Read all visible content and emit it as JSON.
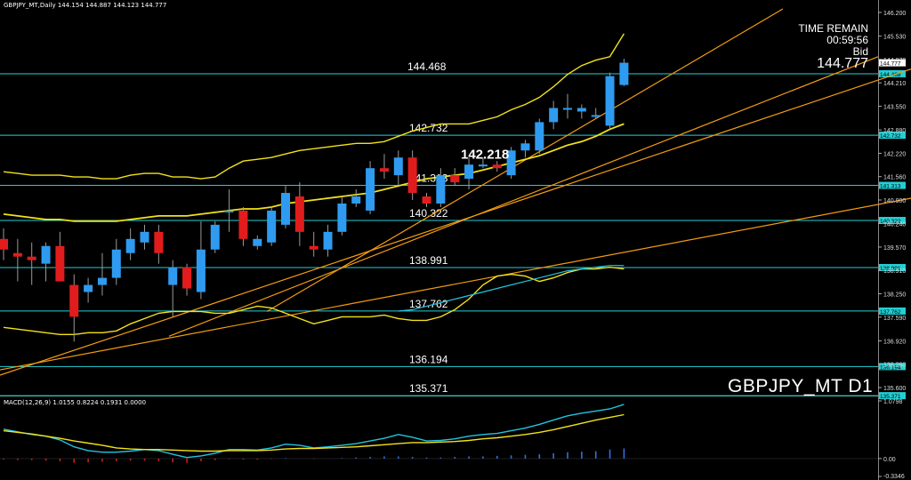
{
  "header": {
    "symbol_period": "GBPJPY_MT,Daily",
    "ohlc": "144.154 144.887 144.123 144.777"
  },
  "status": {
    "time_remain_label": "TIME REMAIN",
    "time_remain": "00:59:56",
    "bid_label": "Bid",
    "bid": "144.777"
  },
  "watermark": "GBPJPY_MT D1",
  "macd_label": "MACD(12,26,9) 1.0155 0.8224 0.1931 0.0000",
  "colors": {
    "background": "#000000",
    "bull": "#2f9bf0",
    "bear": "#e11c1c",
    "level": "#23cfd4",
    "trend": "#f39c12",
    "band": "#f2e21a",
    "ma_cyan": "#22c4e0",
    "price_tag_bg": "#23cfd4"
  },
  "chart_data": {
    "type": "candlestick",
    "timeframe": "Daily",
    "ylim": [
      135.3,
      146.3
    ],
    "axis_ticks": [
      "146.200",
      "145.530",
      "144.870",
      "144.210",
      "143.550",
      "142.880",
      "142.220",
      "141.560",
      "140.900",
      "140.240",
      "139.570",
      "138.910",
      "138.250",
      "137.590",
      "136.920",
      "136.260",
      "135.600"
    ],
    "levels": [
      {
        "value": 144.468,
        "label": "144.468",
        "tag": "144.468"
      },
      {
        "value": 142.732,
        "label": "142.732",
        "tag": "142.732"
      },
      {
        "value": 141.313,
        "label": "141.313",
        "tag": "141.313"
      },
      {
        "value": 140.322,
        "label": "140.322",
        "tag": "140.322"
      },
      {
        "value": 138.991,
        "label": "138.991",
        "tag": "138.991"
      },
      {
        "value": 137.762,
        "label": "137.762",
        "tag": "137.762"
      },
      {
        "value": 136.194,
        "label": "136.194",
        "tag": "136.194"
      },
      {
        "value": 135.371,
        "label": "135.371",
        "tag": "135.371"
      }
    ],
    "current_price": {
      "value": 144.777,
      "label": "144.777"
    },
    "annotation": {
      "text": "142.218",
      "value": 142.218
    },
    "candles": [
      {
        "o": 139.8,
        "h": 140.1,
        "l": 139.2,
        "c": 139.5
      },
      {
        "o": 139.4,
        "h": 139.8,
        "l": 138.6,
        "c": 139.3
      },
      {
        "o": 139.3,
        "h": 139.7,
        "l": 138.5,
        "c": 139.2
      },
      {
        "o": 139.1,
        "h": 139.7,
        "l": 138.6,
        "c": 139.6
      },
      {
        "o": 139.6,
        "h": 140.0,
        "l": 138.7,
        "c": 138.6
      },
      {
        "o": 138.5,
        "h": 138.8,
        "l": 136.9,
        "c": 137.6
      },
      {
        "o": 138.3,
        "h": 138.7,
        "l": 138.0,
        "c": 138.5
      },
      {
        "o": 138.5,
        "h": 139.4,
        "l": 138.2,
        "c": 138.7
      },
      {
        "o": 138.7,
        "h": 139.8,
        "l": 138.5,
        "c": 139.5
      },
      {
        "o": 139.4,
        "h": 140.1,
        "l": 139.2,
        "c": 139.8
      },
      {
        "o": 139.7,
        "h": 140.2,
        "l": 139.5,
        "c": 140.0
      },
      {
        "o": 140.0,
        "h": 140.2,
        "l": 139.1,
        "c": 139.4
      },
      {
        "o": 138.5,
        "h": 139.2,
        "l": 137.6,
        "c": 139.0
      },
      {
        "o": 139.0,
        "h": 139.1,
        "l": 138.2,
        "c": 138.4
      },
      {
        "o": 138.3,
        "h": 140.3,
        "l": 138.1,
        "c": 139.5
      },
      {
        "o": 139.5,
        "h": 140.3,
        "l": 139.4,
        "c": 140.2
      },
      {
        "o": 140.6,
        "h": 141.2,
        "l": 140.0,
        "c": 140.6
      },
      {
        "o": 140.6,
        "h": 140.7,
        "l": 139.6,
        "c": 139.8
      },
      {
        "o": 139.6,
        "h": 139.9,
        "l": 139.5,
        "c": 139.8
      },
      {
        "o": 139.7,
        "h": 140.7,
        "l": 139.6,
        "c": 140.6
      },
      {
        "o": 140.2,
        "h": 141.3,
        "l": 140.1,
        "c": 141.1
      },
      {
        "o": 141.0,
        "h": 141.4,
        "l": 139.6,
        "c": 140.0
      },
      {
        "o": 139.6,
        "h": 140.0,
        "l": 139.3,
        "c": 139.5
      },
      {
        "o": 139.5,
        "h": 140.2,
        "l": 139.3,
        "c": 140.0
      },
      {
        "o": 140.0,
        "h": 141.0,
        "l": 139.9,
        "c": 140.8
      },
      {
        "o": 140.8,
        "h": 141.2,
        "l": 140.7,
        "c": 141.0
      },
      {
        "o": 140.6,
        "h": 142.0,
        "l": 140.5,
        "c": 141.8
      },
      {
        "o": 141.8,
        "h": 142.2,
        "l": 141.5,
        "c": 141.7
      },
      {
        "o": 141.6,
        "h": 142.3,
        "l": 141.3,
        "c": 142.1
      },
      {
        "o": 142.1,
        "h": 142.3,
        "l": 140.9,
        "c": 141.1
      },
      {
        "o": 141.0,
        "h": 141.1,
        "l": 140.7,
        "c": 140.8
      },
      {
        "o": 140.8,
        "h": 141.8,
        "l": 140.7,
        "c": 141.6
      },
      {
        "o": 141.6,
        "h": 141.8,
        "l": 141.3,
        "c": 141.4
      },
      {
        "o": 141.5,
        "h": 142.1,
        "l": 141.2,
        "c": 141.9
      },
      {
        "o": 141.9,
        "h": 142.1,
        "l": 141.8,
        "c": 141.9
      },
      {
        "o": 141.9,
        "h": 142.0,
        "l": 141.7,
        "c": 141.8
      },
      {
        "o": 141.6,
        "h": 142.4,
        "l": 141.5,
        "c": 142.3
      },
      {
        "o": 142.3,
        "h": 142.6,
        "l": 142.1,
        "c": 142.5
      },
      {
        "o": 142.3,
        "h": 143.2,
        "l": 142.2,
        "c": 143.1
      },
      {
        "o": 143.1,
        "h": 143.7,
        "l": 142.9,
        "c": 143.5
      },
      {
        "o": 143.5,
        "h": 143.9,
        "l": 143.2,
        "c": 143.5
      },
      {
        "o": 143.4,
        "h": 143.6,
        "l": 143.2,
        "c": 143.5
      },
      {
        "o": 143.3,
        "h": 143.5,
        "l": 143.2,
        "c": 143.3
      },
      {
        "o": 143.0,
        "h": 144.5,
        "l": 142.9,
        "c": 144.4
      },
      {
        "o": 144.15,
        "h": 144.89,
        "l": 144.12,
        "c": 144.78
      }
    ],
    "overlays": {
      "upper_band": [
        141.7,
        141.65,
        141.6,
        141.6,
        141.6,
        141.55,
        141.55,
        141.5,
        141.5,
        141.6,
        141.65,
        141.65,
        141.55,
        141.55,
        141.5,
        141.55,
        141.8,
        142.0,
        142.05,
        142.1,
        142.2,
        142.3,
        142.35,
        142.4,
        142.45,
        142.5,
        142.5,
        142.55,
        142.7,
        142.85,
        142.95,
        143.05,
        143.05,
        143.05,
        143.15,
        143.25,
        143.45,
        143.6,
        143.8,
        144.1,
        144.45,
        144.7,
        144.85,
        144.95,
        145.6
      ],
      "mid_line": [
        140.5,
        140.45,
        140.4,
        140.35,
        140.35,
        140.3,
        140.3,
        140.3,
        140.3,
        140.35,
        140.4,
        140.45,
        140.45,
        140.45,
        140.5,
        140.55,
        140.6,
        140.65,
        140.65,
        140.7,
        140.8,
        140.85,
        140.9,
        140.95,
        141.0,
        141.05,
        141.1,
        141.2,
        141.3,
        141.4,
        141.5,
        141.55,
        141.6,
        141.65,
        141.75,
        141.85,
        141.95,
        142.05,
        142.15,
        142.3,
        142.45,
        142.55,
        142.7,
        142.9,
        143.05
      ],
      "lower_band": [
        137.3,
        137.25,
        137.2,
        137.15,
        137.1,
        137.1,
        137.15,
        137.15,
        137.2,
        137.4,
        137.55,
        137.7,
        137.75,
        137.75,
        137.75,
        137.7,
        137.7,
        137.8,
        137.9,
        137.85,
        137.7,
        137.55,
        137.4,
        137.5,
        137.6,
        137.6,
        137.6,
        137.65,
        137.55,
        137.5,
        137.5,
        137.6,
        137.8,
        138.1,
        138.5,
        138.75,
        138.8,
        138.75,
        138.6,
        138.7,
        138.85,
        138.95,
        138.95,
        139.0,
        138.95
      ],
      "ma_cyan": [
        null,
        null,
        null,
        null,
        null,
        null,
        null,
        null,
        null,
        null,
        null,
        null,
        null,
        null,
        null,
        null,
        null,
        null,
        null,
        null,
        null,
        null,
        null,
        null,
        null,
        null,
        null,
        null,
        137.76,
        137.8,
        137.9,
        138.0,
        138.1,
        138.2,
        138.3,
        138.4,
        138.5,
        138.6,
        138.7,
        138.8,
        138.9,
        138.95,
        139.0,
        139.05,
        139.05
      ]
    },
    "macd": {
      "params": "MACD(12,26,9)",
      "ylim": [
        -0.3346,
        1.0798
      ],
      "axis_ticks": [
        "1.0798",
        "0.00",
        "-0.3346"
      ],
      "histogram": [
        -0.02,
        -0.03,
        -0.03,
        -0.04,
        -0.05,
        -0.08,
        -0.07,
        -0.06,
        -0.05,
        -0.04,
        -0.04,
        -0.05,
        -0.07,
        -0.08,
        -0.05,
        -0.03,
        -0.01,
        -0.02,
        -0.02,
        -0.01,
        0.01,
        0.0,
        -0.01,
        0.0,
        0.01,
        0.02,
        0.03,
        0.04,
        0.04,
        0.03,
        0.02,
        0.02,
        0.03,
        0.04,
        0.04,
        0.05,
        0.06,
        0.07,
        0.08,
        0.1,
        0.12,
        0.13,
        0.14,
        0.17,
        0.19
      ],
      "macd_line": [
        0.55,
        0.5,
        0.45,
        0.42,
        0.35,
        0.22,
        0.15,
        0.12,
        0.12,
        0.14,
        0.17,
        0.15,
        0.08,
        0.02,
        0.05,
        0.1,
        0.17,
        0.17,
        0.16,
        0.2,
        0.27,
        0.25,
        0.2,
        0.22,
        0.25,
        0.28,
        0.33,
        0.38,
        0.45,
        0.4,
        0.33,
        0.34,
        0.37,
        0.42,
        0.45,
        0.47,
        0.52,
        0.57,
        0.64,
        0.72,
        0.8,
        0.85,
        0.89,
        0.93,
        1.0155
      ],
      "signal_line": [
        0.52,
        0.49,
        0.46,
        0.42,
        0.38,
        0.33,
        0.29,
        0.25,
        0.2,
        0.18,
        0.17,
        0.17,
        0.16,
        0.15,
        0.14,
        0.14,
        0.15,
        0.15,
        0.15,
        0.16,
        0.18,
        0.19,
        0.19,
        0.2,
        0.21,
        0.22,
        0.24,
        0.26,
        0.28,
        0.3,
        0.3,
        0.31,
        0.32,
        0.34,
        0.37,
        0.39,
        0.42,
        0.45,
        0.49,
        0.54,
        0.6,
        0.66,
        0.72,
        0.77,
        0.8224
      ]
    }
  }
}
